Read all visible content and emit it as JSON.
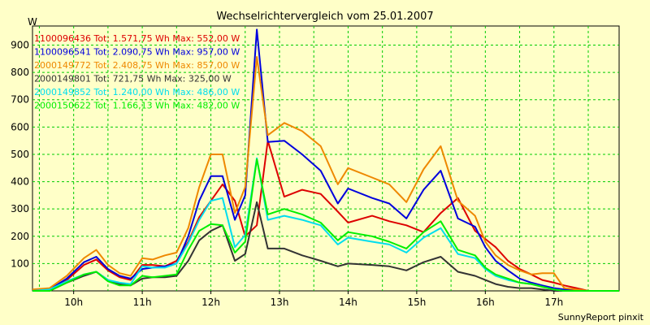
{
  "chart_data": {
    "type": "line",
    "title": "Wechselrichtervergleich vom 25.01.2007",
    "ylabel": "W",
    "xlabel": "",
    "footer": "SunnyReport pinxit",
    "ylim": [
      0,
      970
    ],
    "xlim": [
      9.4,
      17.95
    ],
    "y_ticks": [
      100,
      200,
      300,
      400,
      500,
      600,
      700,
      800,
      900
    ],
    "x_ticks": [
      {
        "value": 10,
        "label": "10h"
      },
      {
        "value": 11,
        "label": "11h"
      },
      {
        "value": 12,
        "label": "12h"
      },
      {
        "value": 13,
        "label": "13h"
      },
      {
        "value": 14,
        "label": "14h"
      },
      {
        "value": 15,
        "label": "15h"
      },
      {
        "value": 16,
        "label": "16h"
      },
      {
        "value": 17,
        "label": "17h"
      }
    ],
    "grid": true,
    "legend_position": "top-left",
    "background_color": "#ffffc8",
    "grid_color": "#00cc00",
    "x": [
      9.4,
      9.65,
      9.9,
      10.15,
      10.33,
      10.5,
      10.67,
      10.83,
      11.0,
      11.15,
      11.33,
      11.5,
      11.67,
      11.83,
      12.0,
      12.17,
      12.35,
      12.5,
      12.67,
      12.83,
      13.07,
      13.33,
      13.6,
      13.85,
      14.0,
      14.35,
      14.6,
      14.85,
      15.1,
      15.35,
      15.6,
      15.85,
      16.0,
      16.15,
      16.33,
      16.5,
      16.67,
      16.83,
      17.0,
      17.15,
      17.33,
      17.5,
      17.7,
      17.95
    ],
    "series": [
      {
        "name": "1100096436 Tot: 1.571,75 Wh Max: 552,00 W",
        "color": "#dd0000",
        "values": [
          0,
          5,
          40,
          95,
          115,
          75,
          50,
          40,
          95,
          95,
          90,
          110,
          180,
          270,
          330,
          390,
          330,
          200,
          240,
          550,
          345,
          370,
          355,
          290,
          250,
          275,
          255,
          240,
          215,
          285,
          340,
          220,
          190,
          160,
          110,
          80,
          60,
          40,
          30,
          20,
          10,
          0,
          0,
          0
        ]
      },
      {
        "name": "1100096541 Tot: 2.090,75 Wh Max: 957,00 W",
        "color": "#0000dd",
        "values": [
          0,
          5,
          45,
          105,
          125,
          80,
          55,
          45,
          80,
          85,
          90,
          100,
          200,
          330,
          420,
          420,
          260,
          350,
          957,
          545,
          550,
          500,
          440,
          320,
          375,
          340,
          320,
          265,
          370,
          440,
          265,
          235,
          160,
          110,
          75,
          45,
          30,
          20,
          10,
          5,
          0,
          0,
          0,
          0
        ]
      },
      {
        "name": "2000149772 Tot: 2.408,75 Wh Max: 857,00 W",
        "color": "#ee8800",
        "values": [
          5,
          10,
          55,
          120,
          150,
          95,
          65,
          55,
          120,
          115,
          130,
          140,
          230,
          380,
          500,
          500,
          285,
          380,
          857,
          570,
          615,
          585,
          530,
          390,
          450,
          415,
          390,
          325,
          445,
          530,
          330,
          275,
          180,
          130,
          95,
          75,
          60,
          65,
          65,
          10,
          5,
          0,
          0,
          0
        ]
      },
      {
        "name": "2000149801 Tot: 721,75 Wh Max: 325,00 W",
        "color": "#333333",
        "values": [
          0,
          0,
          30,
          55,
          70,
          40,
          25,
          20,
          45,
          50,
          50,
          55,
          110,
          185,
          220,
          240,
          110,
          135,
          325,
          155,
          155,
          130,
          110,
          90,
          100,
          95,
          90,
          75,
          105,
          125,
          70,
          55,
          40,
          25,
          15,
          10,
          10,
          5,
          0,
          0,
          0,
          0,
          0,
          0
        ]
      },
      {
        "name": "2000149852 Tot: 1.240,00 Wh Max: 486,00 W",
        "color": "#00ddee",
        "values": [
          0,
          5,
          35,
          60,
          70,
          40,
          30,
          25,
          90,
          85,
          85,
          100,
          175,
          260,
          330,
          340,
          160,
          205,
          486,
          260,
          275,
          260,
          240,
          170,
          195,
          180,
          170,
          140,
          195,
          230,
          135,
          120,
          80,
          55,
          40,
          30,
          25,
          15,
          5,
          0,
          0,
          0,
          0,
          0
        ]
      },
      {
        "name": "2000150622 Tot: 1.166,13 Wh Max: 482,00 W",
        "color": "#00ee00",
        "values": [
          0,
          0,
          30,
          60,
          70,
          35,
          20,
          20,
          55,
          50,
          55,
          60,
          150,
          220,
          245,
          240,
          140,
          180,
          482,
          280,
          300,
          280,
          250,
          185,
          215,
          200,
          180,
          155,
          215,
          255,
          150,
          130,
          85,
          60,
          45,
          30,
          25,
          15,
          5,
          0,
          0,
          0,
          0,
          0
        ]
      }
    ]
  }
}
